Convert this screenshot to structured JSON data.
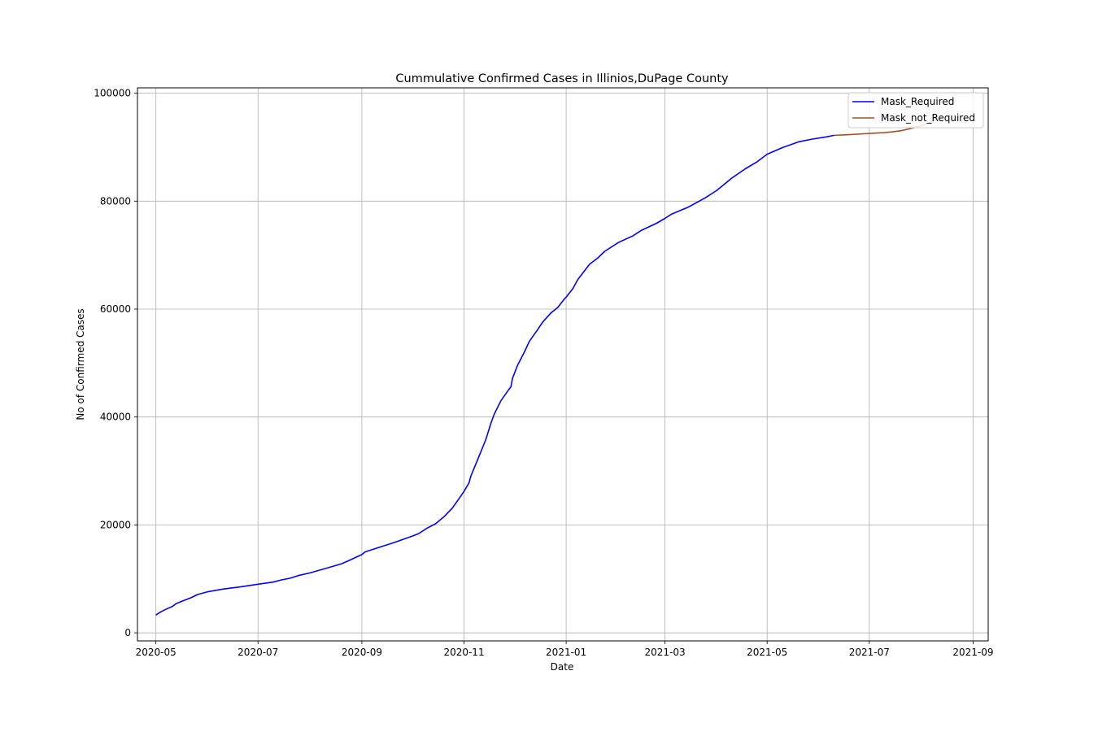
{
  "chart_data": {
    "type": "line",
    "title": "Cummulative Confirmed Cases in Illinios,DuPage County",
    "xlabel": "Date",
    "ylabel": "No of Confirmed Cases",
    "x_type": "date",
    "xlim": [
      "2020-04-20",
      "2021-09-10"
    ],
    "ylim": [
      -1500,
      101000
    ],
    "x_ticks": [
      "2020-05-01",
      "2020-07-01",
      "2020-09-01",
      "2020-11-01",
      "2021-01-01",
      "2021-03-01",
      "2021-05-01",
      "2021-07-01",
      "2021-09-01"
    ],
    "x_tick_labels": [
      "2020-05",
      "2020-07",
      "2020-09",
      "2020-11",
      "2021-01",
      "2021-03",
      "2021-05",
      "2021-07",
      "2021-09"
    ],
    "y_ticks": [
      0,
      20000,
      40000,
      60000,
      80000,
      100000
    ],
    "y_tick_labels": [
      "0",
      "20000",
      "40000",
      "60000",
      "80000",
      "100000"
    ],
    "grid": true,
    "legend_position": "top-right",
    "series": [
      {
        "name": "Mask_Required",
        "color": "#0000ff",
        "points": [
          [
            "2020-05-01",
            3300
          ],
          [
            "2020-05-04",
            3900
          ],
          [
            "2020-05-08",
            4500
          ],
          [
            "2020-05-11",
            4900
          ],
          [
            "2020-05-13",
            5400
          ],
          [
            "2020-05-17",
            5900
          ],
          [
            "2020-05-22",
            6500
          ],
          [
            "2020-05-26",
            7100
          ],
          [
            "2020-06-01",
            7600
          ],
          [
            "2020-06-10",
            8100
          ],
          [
            "2020-06-20",
            8500
          ],
          [
            "2020-07-01",
            9000
          ],
          [
            "2020-07-10",
            9400
          ],
          [
            "2020-07-15",
            9800
          ],
          [
            "2020-07-20",
            10100
          ],
          [
            "2020-07-25",
            10600
          ],
          [
            "2020-08-01",
            11100
          ],
          [
            "2020-08-10",
            11900
          ],
          [
            "2020-08-20",
            12800
          ],
          [
            "2020-08-25",
            13500
          ],
          [
            "2020-09-01",
            14500
          ],
          [
            "2020-09-03",
            15000
          ],
          [
            "2020-09-10",
            15700
          ],
          [
            "2020-09-20",
            16700
          ],
          [
            "2020-10-01",
            17900
          ],
          [
            "2020-10-05",
            18400
          ],
          [
            "2020-10-10",
            19400
          ],
          [
            "2020-10-15",
            20200
          ],
          [
            "2020-10-20",
            21500
          ],
          [
            "2020-10-25",
            23100
          ],
          [
            "2020-10-30",
            25300
          ],
          [
            "2020-11-01",
            26200
          ],
          [
            "2020-11-04",
            27800
          ],
          [
            "2020-11-05",
            29000
          ],
          [
            "2020-11-09",
            32000
          ],
          [
            "2020-11-14",
            35800
          ],
          [
            "2020-11-17",
            38800
          ],
          [
            "2020-11-19",
            40500
          ],
          [
            "2020-11-23",
            43000
          ],
          [
            "2020-11-28",
            45200
          ],
          [
            "2020-11-29",
            45600
          ],
          [
            "2020-11-30",
            47200
          ],
          [
            "2020-12-03",
            49600
          ],
          [
            "2020-12-07",
            52000
          ],
          [
            "2020-12-10",
            54000
          ],
          [
            "2020-12-15",
            56200
          ],
          [
            "2020-12-18",
            57600
          ],
          [
            "2020-12-23",
            59300
          ],
          [
            "2020-12-27",
            60300
          ],
          [
            "2020-12-31",
            61900
          ],
          [
            "2021-01-01",
            62200
          ],
          [
            "2021-01-05",
            63800
          ],
          [
            "2021-01-08",
            65500
          ],
          [
            "2021-01-15",
            68300
          ],
          [
            "2021-01-20",
            69500
          ],
          [
            "2021-01-24",
            70700
          ],
          [
            "2021-02-01",
            72300
          ],
          [
            "2021-02-10",
            73600
          ],
          [
            "2021-02-15",
            74600
          ],
          [
            "2021-02-24",
            75900
          ],
          [
            "2021-03-01",
            76800
          ],
          [
            "2021-03-05",
            77600
          ],
          [
            "2021-03-15",
            78900
          ],
          [
            "2021-03-25",
            80600
          ],
          [
            "2021-04-01",
            82000
          ],
          [
            "2021-04-10",
            84300
          ],
          [
            "2021-04-18",
            86000
          ],
          [
            "2021-04-25",
            87300
          ],
          [
            "2021-05-01",
            88700
          ],
          [
            "2021-05-10",
            89900
          ],
          [
            "2021-05-20",
            91000
          ],
          [
            "2021-05-28",
            91500
          ],
          [
            "2021-06-05",
            91900
          ],
          [
            "2021-06-10",
            92200
          ]
        ]
      },
      {
        "name": "Mask_not_Required",
        "color": "#a0522d",
        "points": [
          [
            "2021-06-10",
            92200
          ],
          [
            "2021-06-20",
            92350
          ],
          [
            "2021-07-01",
            92550
          ],
          [
            "2021-07-10",
            92700
          ],
          [
            "2021-07-15",
            92850
          ],
          [
            "2021-07-20",
            93050
          ],
          [
            "2021-07-25",
            93400
          ],
          [
            "2021-07-31",
            93900
          ],
          [
            "2021-08-05",
            94400
          ],
          [
            "2021-08-10",
            95100
          ]
        ]
      }
    ]
  }
}
